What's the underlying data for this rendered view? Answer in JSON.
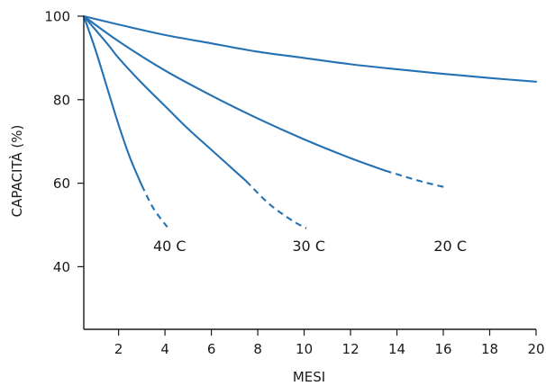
{
  "chart_data": {
    "type": "line",
    "xlabel": "MESI",
    "ylabel": "CAPACITÀ (%)",
    "xlim": [
      0.5,
      20
    ],
    "ylim": [
      25,
      100
    ],
    "x_ticks": [
      2,
      4,
      6,
      8,
      10,
      12,
      14,
      16,
      18,
      20
    ],
    "y_ticks": [
      40,
      60,
      80,
      100
    ],
    "grid": false,
    "legend": "none",
    "line_color": "#2472b3",
    "series": [
      {
        "name": "40 C",
        "points": [
          [
            0.5,
            100
          ],
          [
            1,
            92
          ],
          [
            1.5,
            83
          ],
          [
            2,
            74
          ],
          [
            2.5,
            66
          ],
          [
            3.0,
            59.5
          ]
        ],
        "extrapolated": [
          [
            3.0,
            59.5
          ],
          [
            3.5,
            54
          ],
          [
            4.1,
            49.5
          ]
        ],
        "label": "40 C",
        "label_pos": [
          4.2,
          45
        ]
      },
      {
        "name": "30 C",
        "points": [
          [
            0.5,
            100
          ],
          [
            1.5,
            93.5
          ],
          [
            2,
            90
          ],
          [
            3,
            84
          ],
          [
            4,
            78.5
          ],
          [
            5,
            73
          ],
          [
            6,
            68
          ],
          [
            7,
            63
          ],
          [
            7.5,
            60.5
          ]
        ],
        "extrapolated": [
          [
            7.5,
            60.5
          ],
          [
            8.5,
            55
          ],
          [
            9.5,
            51
          ],
          [
            10.1,
            49.2
          ]
        ],
        "label": "30 C",
        "label_pos": [
          10.2,
          45
        ]
      },
      {
        "name": "20 C",
        "points": [
          [
            0.5,
            100
          ],
          [
            2,
            94
          ],
          [
            4,
            87
          ],
          [
            6,
            81
          ],
          [
            8,
            75.5
          ],
          [
            10,
            70.5
          ],
          [
            12,
            66
          ],
          [
            13.5,
            63
          ]
        ],
        "extrapolated": [
          [
            13.5,
            63
          ],
          [
            15,
            60.5
          ],
          [
            16.1,
            59
          ]
        ],
        "label": "20 C",
        "label_pos": [
          16.3,
          45
        ]
      },
      {
        "name": "",
        "points": [
          [
            0.5,
            100
          ],
          [
            2,
            98
          ],
          [
            4,
            95.5
          ],
          [
            6,
            93.5
          ],
          [
            8,
            91.5
          ],
          [
            10,
            90
          ],
          [
            12,
            88.5
          ],
          [
            14,
            87.3
          ],
          [
            16,
            86.2
          ],
          [
            18,
            85.2
          ],
          [
            20,
            84.3
          ]
        ],
        "extrapolated": [],
        "label": "",
        "label_pos": null
      }
    ]
  }
}
